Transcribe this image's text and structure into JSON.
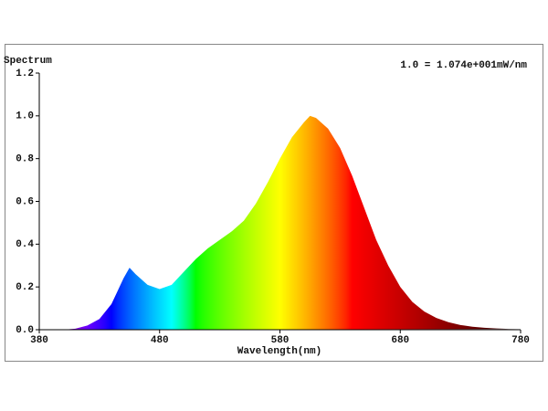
{
  "chart_data": {
    "type": "area",
    "title": "Spectrum",
    "annotation": "1.0 = 1.074e+001mW/nm",
    "x_label": "Wavelength(nm)",
    "x": [
      380,
      390,
      400,
      410,
      420,
      430,
      440,
      450,
      455,
      460,
      470,
      480,
      490,
      500,
      510,
      520,
      530,
      540,
      550,
      560,
      570,
      580,
      590,
      600,
      605,
      610,
      620,
      630,
      640,
      650,
      660,
      670,
      680,
      690,
      700,
      710,
      720,
      730,
      740,
      750,
      760,
      770,
      780
    ],
    "values": [
      0,
      0,
      0,
      0.005,
      0.02,
      0.05,
      0.12,
      0.24,
      0.29,
      0.26,
      0.21,
      0.19,
      0.21,
      0.27,
      0.33,
      0.38,
      0.42,
      0.46,
      0.51,
      0.59,
      0.69,
      0.8,
      0.9,
      0.97,
      1.0,
      0.99,
      0.94,
      0.85,
      0.72,
      0.57,
      0.42,
      0.3,
      0.2,
      0.13,
      0.085,
      0.055,
      0.035,
      0.022,
      0.014,
      0.009,
      0.006,
      0.004,
      0.003
    ],
    "xlim": [
      380,
      780
    ],
    "xticks": [
      380,
      480,
      580,
      680,
      780
    ],
    "ylim": [
      0,
      1.2
    ],
    "yticks": [
      {
        "value": 0,
        "label": "0.0"
      },
      0.2,
      0.4,
      0.6,
      0.8,
      {
        "value": 1,
        "label": "1.0"
      },
      1.2
    ],
    "fill": "wavelength-spectrum",
    "grid": false
  }
}
